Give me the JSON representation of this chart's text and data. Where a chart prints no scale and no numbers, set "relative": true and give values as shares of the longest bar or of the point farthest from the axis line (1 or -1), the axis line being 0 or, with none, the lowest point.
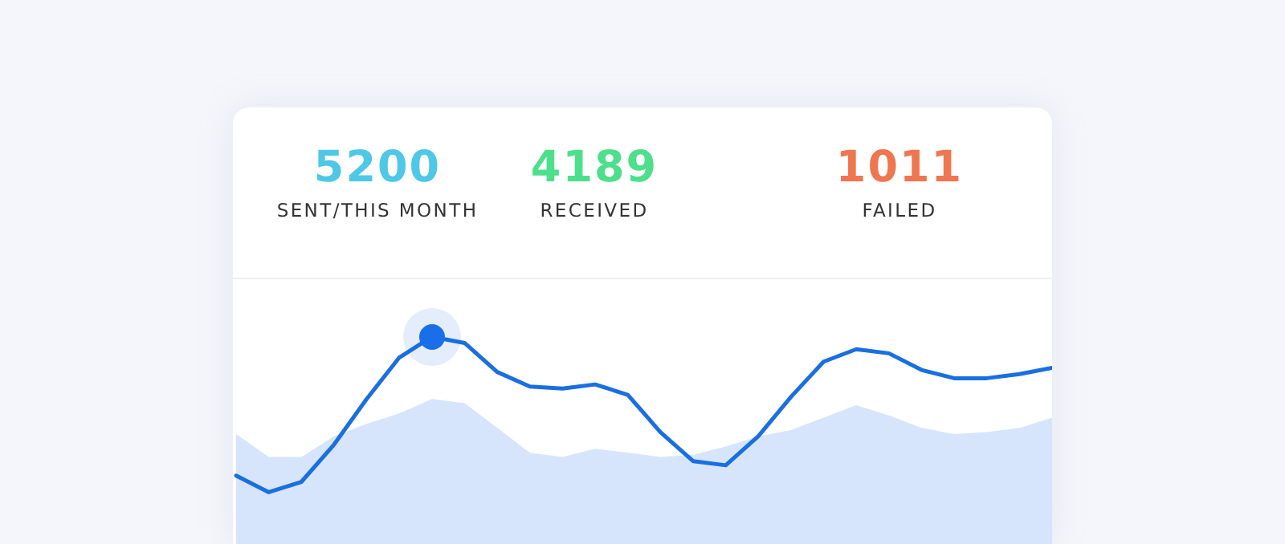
{
  "chart_data": {
    "type": "line",
    "relative": true,
    "annotations": [
      "5200",
      "SENT/THIS MONTH",
      "4189",
      "RECEIVED",
      "1011",
      "FAILED"
    ],
    "categories": [
      null,
      null,
      null,
      null,
      null,
      null,
      null,
      null,
      null,
      null,
      null,
      null,
      null,
      null,
      null,
      null,
      null,
      null,
      null,
      null,
      null,
      null,
      null,
      null,
      null,
      null
    ],
    "series": [
      {
        "type": "area",
        "color": "#d6e5fb",
        "values": [
          0.53,
          0.42,
          0.42,
          0.52,
          0.58,
          0.63,
          0.7,
          0.68,
          0.56,
          0.44,
          0.42,
          0.46,
          0.44,
          0.42,
          0.43,
          0.47,
          0.52,
          0.55,
          0.61,
          0.67,
          0.62,
          0.56,
          0.53,
          0.54,
          0.56,
          0.61
        ]
      },
      {
        "color": "#1a6fe0",
        "values": [
          0.33,
          0.25,
          0.3,
          0.48,
          0.7,
          0.9,
          1,
          0.97,
          0.83,
          0.76,
          0.75,
          0.77,
          0.72,
          0.54,
          0.4,
          0.38,
          0.52,
          0.71,
          0.88,
          0.94,
          0.92,
          0.84,
          0.8,
          0.8,
          0.82,
          0.85
        ]
      }
    ]
  }
}
